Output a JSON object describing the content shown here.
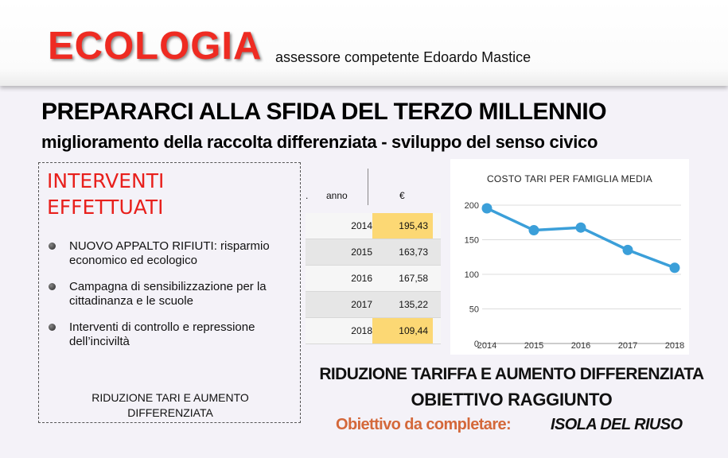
{
  "banner": {
    "title": "ECOLOGIA",
    "subtitle": "assessore competente Edoardo Mastice"
  },
  "headline": "PREPARARCI ALLA SFIDA DEL TERZO MILLENNIO",
  "subheadline": "miglioramento della raccolta differenziata - sviluppo del senso civico",
  "interventions": {
    "title_line1": "INTERVENTI",
    "title_line2": "EFFETTUATI",
    "items": [
      "NUOVO APPALTO RIFIUTI: risparmio economico ed ecologico",
      "Campagna di sensibilizzazione per la cittadinanza e le scuole",
      "Interventi di controllo e repressione dell’inciviltà"
    ],
    "footer_line1": "RIDUZIONE TARI E AUMENTO",
    "footer_line2": "DIFFERENZIATA"
  },
  "table": {
    "header_year": "anno",
    "header_value": "€",
    "rows": [
      {
        "year": "2014",
        "value": "195,43",
        "highlight": true
      },
      {
        "year": "2015",
        "value": "163,73",
        "highlight": false
      },
      {
        "year": "2016",
        "value": "167,58",
        "highlight": false
      },
      {
        "year": "2017",
        "value": "135,22",
        "highlight": false
      },
      {
        "year": "2018",
        "value": "109,44",
        "highlight": true
      }
    ]
  },
  "chart_data": {
    "type": "line",
    "title": "COSTO TARI PER FAMIGLIA MEDIA",
    "x": [
      "2014",
      "2015",
      "2016",
      "2017",
      "2018"
    ],
    "series": [
      {
        "values": [
          195.43,
          163.73,
          167.58,
          135.22,
          109.44
        ]
      }
    ],
    "yticks": [
      0,
      50,
      100,
      150,
      200
    ],
    "ylim": [
      0,
      200
    ],
    "grid": true,
    "color": "#3b9fd9"
  },
  "conclusion": {
    "line1": "RIDUZIONE TARIFFA E AUMENTO DIFFERENZIATA",
    "line2": "OBIETTIVO RAGGIUNTO",
    "pending_label": "Obiettivo da completare:",
    "pending_target": "ISOLA DEL RIUSO"
  },
  "colors": {
    "accent_red": "#ee2b22",
    "highlight_yellow": "#fcd874",
    "pending_orange": "#d4683a",
    "line_blue": "#3b9fd9"
  }
}
